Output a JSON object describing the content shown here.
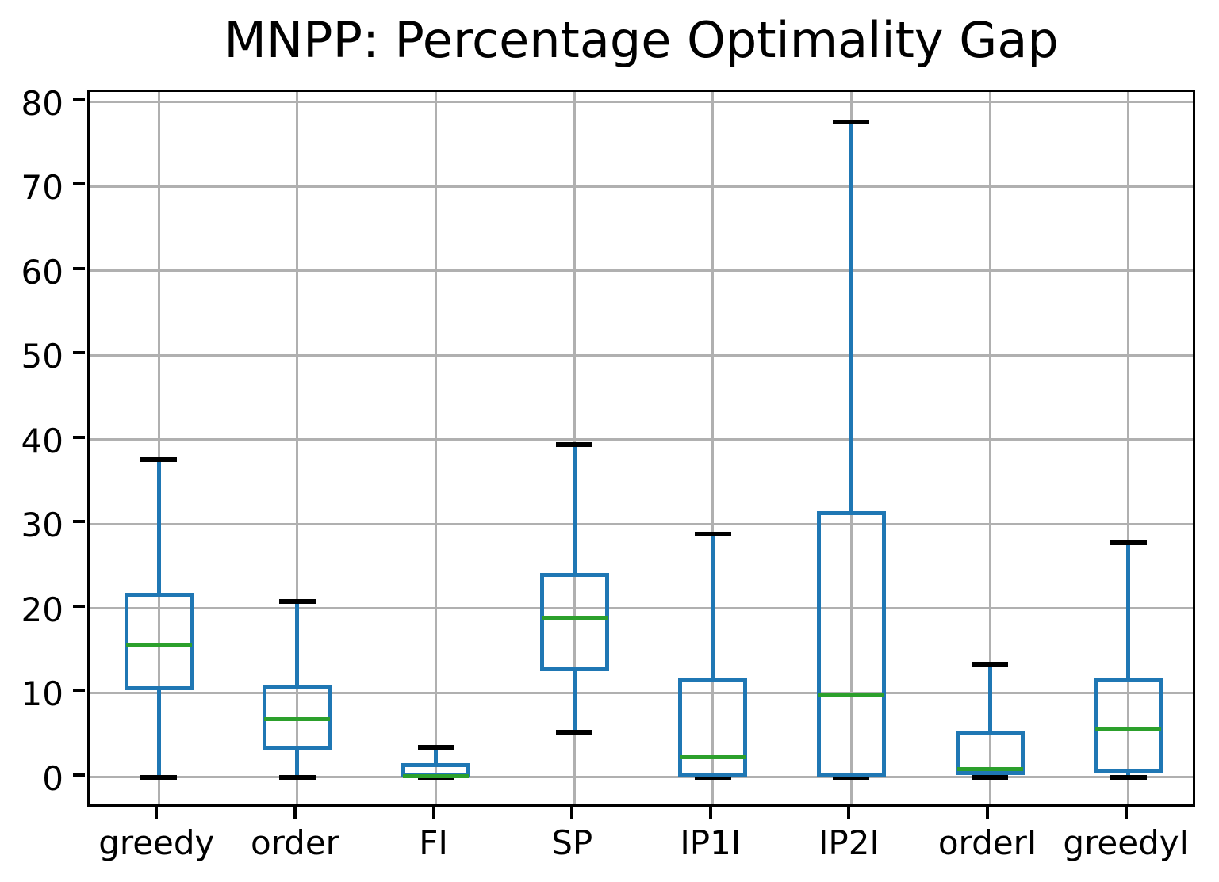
{
  "chart_data": {
    "type": "boxplot",
    "title": "MNPP: Percentage Optimality Gap",
    "xlabel": "",
    "ylabel": "",
    "categories": [
      "greedy",
      "order",
      "FI",
      "SP",
      "IP1I",
      "IP2I",
      "orderI",
      "greedyI"
    ],
    "series": [
      {
        "name": "greedy",
        "whislo": 0.0,
        "q1": 10.3,
        "med": 15.7,
        "q3": 21.9,
        "whishi": 37.6
      },
      {
        "name": "order",
        "whislo": 0.0,
        "q1": 3.3,
        "med": 6.9,
        "q3": 11.0,
        "whishi": 20.8
      },
      {
        "name": "FI",
        "whislo": 0.0,
        "q1": 0.0,
        "med": 0.15,
        "q3": 1.7,
        "whishi": 3.6
      },
      {
        "name": "SP",
        "whislo": 5.3,
        "q1": 12.6,
        "med": 18.9,
        "q3": 24.2,
        "whishi": 39.4
      },
      {
        "name": "IP1I",
        "whislo": 0.0,
        "q1": 0.1,
        "med": 2.4,
        "q3": 11.7,
        "whishi": 28.8
      },
      {
        "name": "IP2I",
        "whislo": 0.0,
        "q1": 0.1,
        "med": 9.7,
        "q3": 31.5,
        "whishi": 77.6
      },
      {
        "name": "orderI",
        "whislo": 0.0,
        "q1": 0.3,
        "med": 0.95,
        "q3": 5.4,
        "whishi": 13.3
      },
      {
        "name": "greedyI",
        "whislo": 0.0,
        "q1": 0.5,
        "med": 5.8,
        "q3": 11.7,
        "whishi": 27.8
      }
    ],
    "yticks": [
      0,
      10,
      20,
      30,
      40,
      50,
      60,
      70,
      80
    ],
    "ylim": [
      -3.76,
      81.2
    ],
    "grid": true,
    "legend": null,
    "colors": {
      "box": "#1f77b4",
      "whisker": "#1f77b4",
      "median": "#2ca02c",
      "cap": "#000000",
      "grid": "#b0b0b0",
      "axis": "#000000",
      "text": "#000000"
    }
  }
}
